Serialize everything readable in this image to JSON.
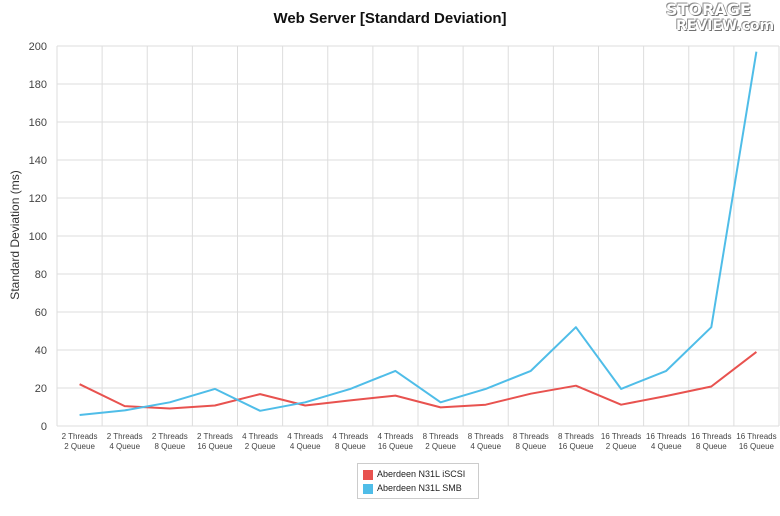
{
  "logo": {
    "line1": "STORAGE",
    "line2": "REVIEW.com"
  },
  "chart_data": {
    "type": "line",
    "title": "Web Server [Standard Deviation]",
    "xlabel": "",
    "ylabel": "Standard Deviation (ms)",
    "ylim": [
      0,
      200
    ],
    "yticks": [
      0,
      20,
      40,
      60,
      80,
      100,
      120,
      140,
      160,
      180,
      200
    ],
    "grid": true,
    "legend_position": "bottom-center",
    "categories": [
      [
        "2 Threads",
        "2 Queue"
      ],
      [
        "2 Threads",
        "4 Queue"
      ],
      [
        "2 Threads",
        "8 Queue"
      ],
      [
        "2 Threads",
        "16 Queue"
      ],
      [
        "4 Threads",
        "2 Queue"
      ],
      [
        "4 Threads",
        "4 Queue"
      ],
      [
        "4 Threads",
        "8 Queue"
      ],
      [
        "4 Threads",
        "16 Queue"
      ],
      [
        "8 Threads",
        "2 Queue"
      ],
      [
        "8 Threads",
        "4 Queue"
      ],
      [
        "8 Threads",
        "8 Queue"
      ],
      [
        "8 Threads",
        "16 Queue"
      ],
      [
        "16 Threads",
        "2 Queue"
      ],
      [
        "16 Threads",
        "4 Queue"
      ],
      [
        "16 Threads",
        "8 Queue"
      ],
      [
        "16 Threads",
        "16 Queue"
      ]
    ],
    "series": [
      {
        "name": "Aberdeen N31L iSCSI",
        "color": "#e8524f",
        "values": [
          22,
          10.5,
          9.2,
          10.8,
          16.8,
          10.8,
          13.5,
          16,
          9.8,
          11.2,
          17,
          21.2,
          11.2,
          15.8,
          20.8,
          39
        ]
      },
      {
        "name": "Aberdeen N31L SMB",
        "color": "#4fbde8",
        "values": [
          5.8,
          8.2,
          12.5,
          19.5,
          8,
          12.5,
          19.5,
          29,
          12.5,
          19.5,
          29,
          52,
          19.5,
          29,
          52,
          197
        ]
      }
    ]
  }
}
